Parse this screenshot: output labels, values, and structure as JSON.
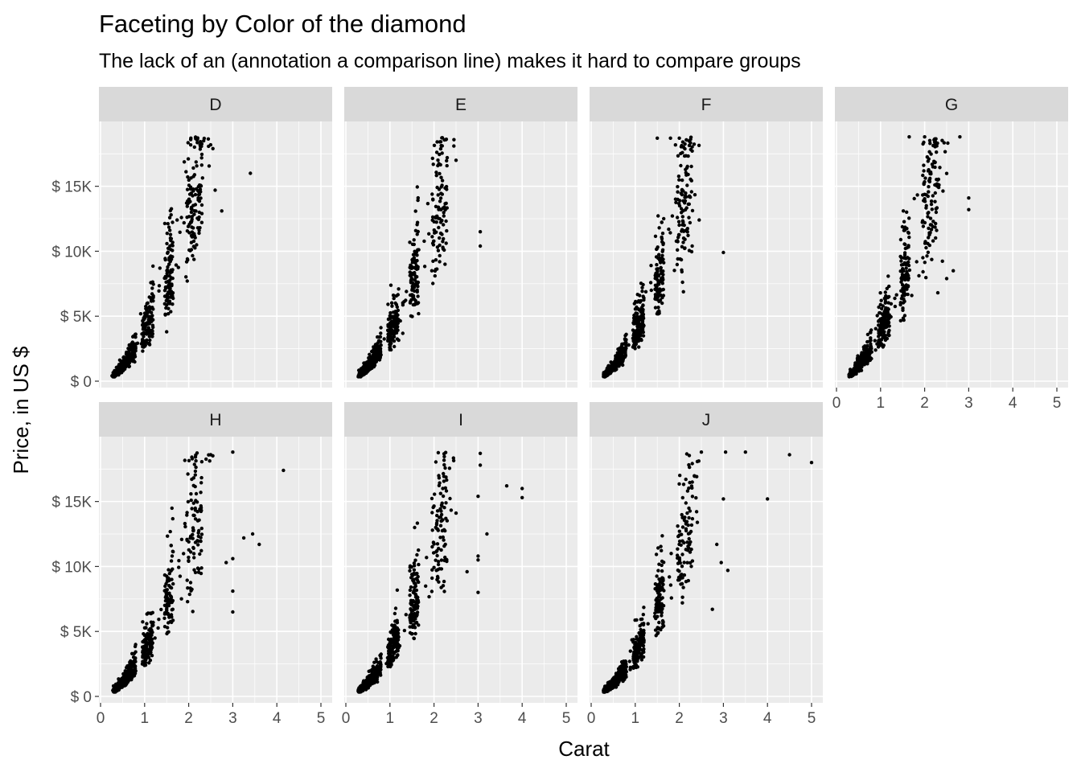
{
  "chart_data": {
    "type": "scatter",
    "title": "Faceting by Color of the diamond",
    "subtitle": "The lack of an (annotation a comparison line) makes it hard to compare groups",
    "xlabel": "Carat",
    "ylabel": "Price, in US $",
    "xlim": [
      0,
      5
    ],
    "ylim": [
      0,
      19000
    ],
    "x_ticks": [
      0,
      1,
      2,
      3,
      4,
      5
    ],
    "x_tick_labels": [
      "0",
      "1",
      "2",
      "3",
      "4",
      "5"
    ],
    "y_ticks": [
      0,
      5000,
      10000,
      15000
    ],
    "y_tick_labels": [
      "$ 0",
      "$ 5K",
      "$ 10K",
      "$ 15K"
    ],
    "grid": true,
    "facet_layout": "3 columns x 2 rows",
    "point_color": "#000000",
    "panel_background": "#EBEBEB",
    "strip_background": "#D9D9D9",
    "facets": [
      {
        "name": "D",
        "points": [
          [
            3.4,
            16000
          ],
          [
            2.75,
            13100
          ],
          [
            2.6,
            14700
          ],
          [
            2.55,
            17900
          ],
          [
            2.05,
            18700
          ],
          [
            1.5,
            3800
          ]
        ]
      },
      {
        "name": "E",
        "points": [
          [
            3.05,
            11500
          ],
          [
            3.05,
            10400
          ],
          [
            2.3,
            17200
          ],
          [
            2.2,
            10300
          ],
          [
            2.25,
            9000
          ],
          [
            2.5,
            17000
          ]
        ]
      },
      {
        "name": "F",
        "points": [
          [
            3.0,
            9900
          ],
          [
            2.45,
            12400
          ],
          [
            2.0,
            18700
          ],
          [
            1.8,
            18700
          ],
          [
            1.5,
            18700
          ]
        ]
      },
      {
        "name": "G",
        "points": [
          [
            3.0,
            14100
          ],
          [
            3.0,
            13200
          ],
          [
            2.8,
            18800
          ],
          [
            2.65,
            8500
          ],
          [
            2.5,
            7900
          ],
          [
            2.3,
            6800
          ],
          [
            2.0,
            18800
          ],
          [
            1.65,
            18800
          ]
        ]
      },
      {
        "name": "H",
        "points": [
          [
            4.15,
            17400
          ],
          [
            3.6,
            11700
          ],
          [
            3.45,
            12500
          ],
          [
            3.25,
            12200
          ],
          [
            3.0,
            18800
          ],
          [
            3.0,
            10600
          ],
          [
            3.0,
            8100
          ],
          [
            3.0,
            6500
          ],
          [
            2.85,
            10300
          ],
          [
            2.5,
            18600
          ]
        ]
      },
      {
        "name": "I",
        "points": [
          [
            4.0,
            16000
          ],
          [
            4.0,
            15300
          ],
          [
            3.65,
            16200
          ],
          [
            3.2,
            12500
          ],
          [
            3.05,
            18700
          ],
          [
            3.05,
            17800
          ],
          [
            3.0,
            15400
          ],
          [
            3.0,
            10800
          ],
          [
            3.0,
            10500
          ],
          [
            3.0,
            8000
          ],
          [
            2.75,
            9600
          ]
        ]
      },
      {
        "name": "J",
        "points": [
          [
            5.0,
            18000
          ],
          [
            4.5,
            18600
          ],
          [
            4.0,
            15200
          ],
          [
            3.5,
            18800
          ],
          [
            3.05,
            18800
          ],
          [
            3.1,
            9700
          ],
          [
            3.0,
            15200
          ],
          [
            2.95,
            10300
          ],
          [
            2.85,
            11700
          ],
          [
            2.75,
            6700
          ],
          [
            2.5,
            18800
          ]
        ]
      }
    ]
  }
}
